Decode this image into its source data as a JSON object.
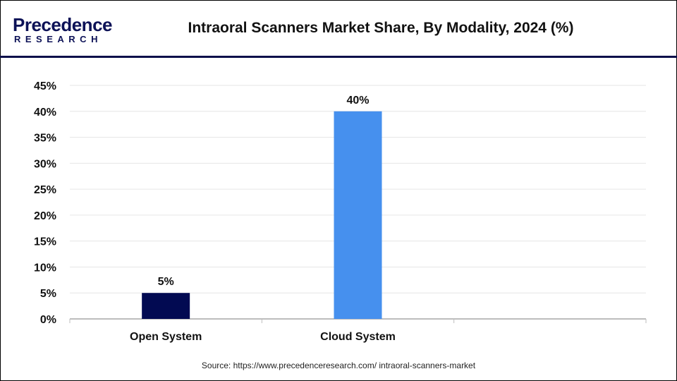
{
  "logo": {
    "line1": "Precedence",
    "line2": "RESEARCH"
  },
  "title": "Intraoral Scanners Market Share, By Modality, 2024 (%)",
  "source": "Source: https://www.precedenceresearch.com/ intraoral-scanners-market",
  "chart_data": {
    "type": "bar",
    "title": "Intraoral Scanners Market Share, By Modality, 2024 (%)",
    "categories": [
      "Open System",
      "Cloud System",
      ""
    ],
    "values": [
      5,
      40,
      null
    ],
    "data_labels": [
      "5%",
      "40%",
      ""
    ],
    "bar_colors": [
      "#020a52",
      "#4690ee",
      null
    ],
    "ylim": [
      0,
      45
    ],
    "yticks": [
      "0%",
      "5%",
      "10%",
      "15%",
      "20%",
      "25%",
      "30%",
      "35%",
      "40%",
      "45%"
    ],
    "grid": true,
    "legend": "none"
  }
}
